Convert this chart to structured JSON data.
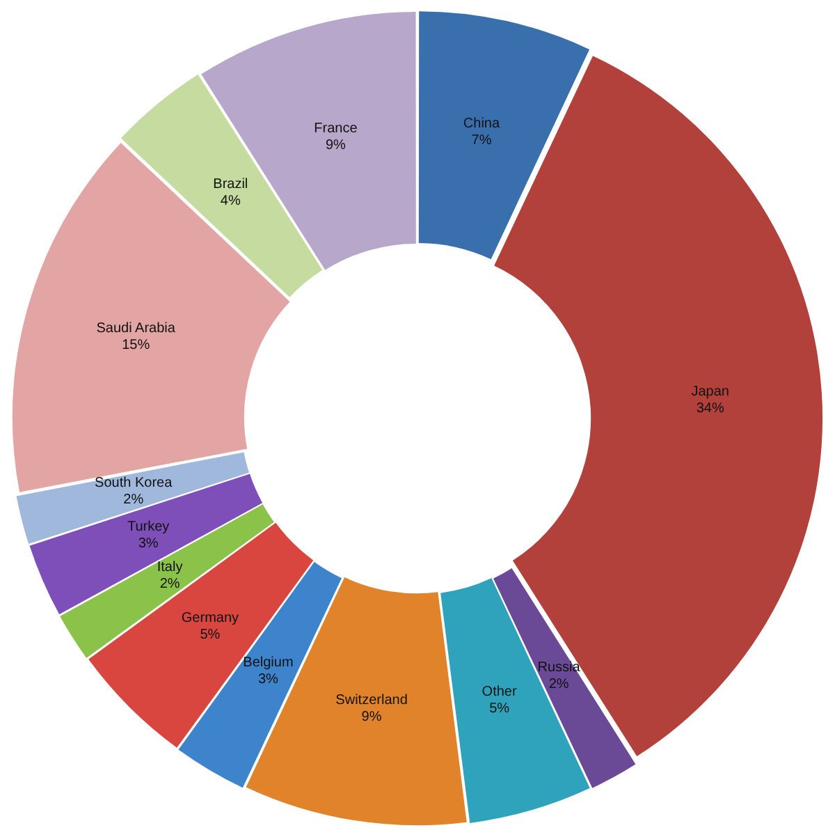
{
  "chart_data": {
    "type": "donut",
    "categories": [
      "China",
      "Japan",
      "Russia",
      "Other",
      "Switzerland",
      "Belgium",
      "Germany",
      "Italy",
      "Turkey",
      "South Korea",
      "Saudi Arabia",
      "Brazil",
      "France"
    ],
    "values": [
      7,
      34,
      2,
      5,
      9,
      3,
      5,
      2,
      3,
      2,
      15,
      4,
      9
    ],
    "value_labels": [
      "7%",
      "34%",
      "2%",
      "5%",
      "9%",
      "3%",
      "5%",
      "2%",
      "3%",
      "2%",
      "15%",
      "4%",
      "9%"
    ],
    "colors": [
      "#3a6fae",
      "#b3413b",
      "#6a4a96",
      "#2fa3bb",
      "#e0832b",
      "#3d84cc",
      "#d9463f",
      "#8bc34a",
      "#7e4fb8",
      "#9fb8dc",
      "#e3a5a3",
      "#c6dba0",
      "#b7a8cb"
    ],
    "legend": false
  }
}
